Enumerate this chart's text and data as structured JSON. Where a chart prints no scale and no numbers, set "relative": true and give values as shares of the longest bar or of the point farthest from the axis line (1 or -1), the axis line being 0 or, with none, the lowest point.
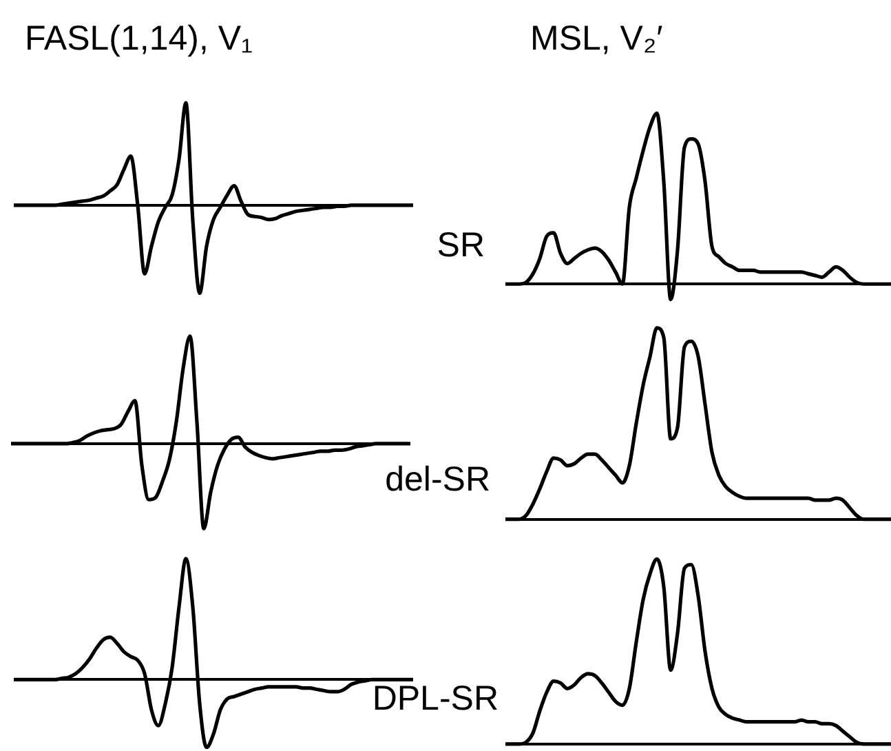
{
  "chart_data": [
    {
      "type": "line",
      "relative": true,
      "marker": "none",
      "title": "FASL(1,14), V₁",
      "categories": [
        null,
        null,
        null,
        null,
        null,
        null,
        null,
        null,
        null,
        null,
        null,
        null,
        null,
        null,
        null,
        null,
        null,
        null,
        null,
        null,
        null,
        null,
        null,
        null,
        null,
        null,
        null,
        null,
        null,
        null,
        null,
        null,
        null,
        null,
        null,
        null,
        null,
        null,
        null,
        null,
        null,
        null,
        null,
        null,
        null,
        null,
        null,
        null,
        null,
        null,
        null,
        null,
        null,
        null,
        null,
        null,
        null,
        null,
        null
      ],
      "series": [
        {
          "color": "#000000",
          "values": [
            0,
            0,
            0,
            0,
            0,
            0,
            0,
            0.01,
            0.02,
            0.03,
            0.04,
            0.05,
            0.07,
            0.09,
            0.14,
            0.2,
            0.35,
            0.48,
            0,
            -0.67,
            -0.4,
            -0.16,
            -0.02,
            0.1,
            0.45,
            1,
            -0.15,
            -0.86,
            -0.4,
            -0.14,
            -0.02,
            0.1,
            0.19,
            0.04,
            -0.09,
            -0.11,
            -0.12,
            -0.14,
            -0.13,
            -0.1,
            -0.08,
            -0.06,
            -0.05,
            -0.04,
            -0.03,
            -0.02,
            -0.02,
            -0.01,
            -0.01,
            0,
            0,
            0,
            0,
            0,
            0,
            0,
            0,
            0,
            0
          ]
        }
      ]
    },
    {
      "type": "line",
      "relative": true,
      "marker": "none",
      "title": "MSL, V₂′",
      "annotations": [
        "SR"
      ],
      "categories": [
        null,
        null,
        null,
        null,
        null,
        null,
        null,
        null,
        null,
        null,
        null,
        null,
        null,
        null,
        null,
        null,
        null,
        null,
        null,
        null,
        null,
        null,
        null,
        null,
        null,
        null,
        null,
        null,
        null,
        null,
        null,
        null,
        null,
        null,
        null,
        null,
        null,
        null,
        null,
        null,
        null,
        null,
        null,
        null,
        null,
        null,
        null,
        null,
        null,
        null,
        null,
        null,
        null,
        null,
        null,
        null,
        null
      ],
      "series": [
        {
          "color": "#000000",
          "values": [
            0,
            0,
            0,
            0.01,
            0.06,
            0.15,
            0.28,
            0.3,
            0.18,
            0.12,
            0.15,
            0.18,
            0.2,
            0.21,
            0.19,
            0.14,
            0.07,
            0,
            0.45,
            0.62,
            0.78,
            0.92,
            1,
            0.6,
            -0.09,
            0.2,
            0.8,
            0.85,
            0.82,
            0.6,
            0.22,
            0.16,
            0.12,
            0.1,
            0.08,
            0.08,
            0.08,
            0.07,
            0.07,
            0.07,
            0.07,
            0.07,
            0.07,
            0.07,
            0.06,
            0.05,
            0.04,
            0.07,
            0.1,
            0.08,
            0.04,
            0.01,
            0,
            0,
            0,
            0,
            0
          ]
        }
      ]
    },
    {
      "type": "line",
      "relative": true,
      "marker": "none",
      "categories": [
        null,
        null,
        null,
        null,
        null,
        null,
        null,
        null,
        null,
        null,
        null,
        null,
        null,
        null,
        null,
        null,
        null,
        null,
        null,
        null,
        null,
        null,
        null,
        null,
        null,
        null,
        null,
        null,
        null,
        null,
        null,
        null,
        null,
        null,
        null,
        null,
        null,
        null,
        null,
        null,
        null,
        null,
        null,
        null,
        null,
        null,
        null,
        null,
        null,
        null,
        null,
        null,
        null,
        null,
        null,
        null,
        null,
        null,
        null
      ],
      "series": [
        {
          "color": "#000000",
          "values": [
            0,
            0,
            0,
            0,
            0,
            0,
            0,
            0,
            0,
            0.01,
            0.03,
            0.07,
            0.1,
            0.12,
            0.13,
            0.14,
            0.18,
            0.3,
            0.4,
            -0.2,
            -0.52,
            -0.5,
            -0.35,
            -0.15,
            0.2,
            0.7,
            1,
            0.2,
            -0.79,
            -0.45,
            -0.2,
            -0.05,
            0.04,
            0.06,
            -0.03,
            -0.08,
            -0.11,
            -0.13,
            -0.14,
            -0.13,
            -0.12,
            -0.11,
            -0.1,
            -0.09,
            -0.08,
            -0.07,
            -0.07,
            -0.06,
            -0.06,
            -0.05,
            -0.03,
            -0.02,
            -0.01,
            0,
            0,
            0,
            0,
            0,
            0
          ]
        }
      ]
    },
    {
      "type": "line",
      "relative": true,
      "marker": "none",
      "annotations": [
        "del-SR"
      ],
      "categories": [
        null,
        null,
        null,
        null,
        null,
        null,
        null,
        null,
        null,
        null,
        null,
        null,
        null,
        null,
        null,
        null,
        null,
        null,
        null,
        null,
        null,
        null,
        null,
        null,
        null,
        null,
        null,
        null,
        null,
        null,
        null,
        null,
        null,
        null,
        null,
        null,
        null,
        null,
        null,
        null,
        null,
        null,
        null,
        null,
        null,
        null,
        null,
        null,
        null,
        null,
        null,
        null,
        null,
        null,
        null,
        null,
        null
      ],
      "series": [
        {
          "color": "#000000",
          "values": [
            0,
            0,
            0,
            0.02,
            0.08,
            0.16,
            0.25,
            0.32,
            0.31,
            0.28,
            0.29,
            0.32,
            0.34,
            0.34,
            0.31,
            0.27,
            0.23,
            0.19,
            0.28,
            0.5,
            0.7,
            0.85,
            1,
            0.95,
            0.42,
            0.48,
            0.9,
            0.93,
            0.85,
            0.6,
            0.35,
            0.23,
            0.17,
            0.14,
            0.12,
            0.11,
            0.11,
            0.11,
            0.11,
            0.11,
            0.11,
            0.11,
            0.11,
            0.11,
            0.11,
            0.1,
            0.1,
            0.1,
            0.11,
            0.1,
            0.06,
            0.02,
            0,
            0,
            0,
            0,
            0
          ]
        }
      ]
    },
    {
      "type": "line",
      "relative": true,
      "marker": "none",
      "categories": [
        null,
        null,
        null,
        null,
        null,
        null,
        null,
        null,
        null,
        null,
        null,
        null,
        null,
        null,
        null,
        null,
        null,
        null,
        null,
        null,
        null,
        null,
        null,
        null,
        null,
        null,
        null,
        null,
        null,
        null,
        null,
        null,
        null,
        null,
        null,
        null,
        null,
        null,
        null,
        null,
        null,
        null,
        null,
        null,
        null,
        null,
        null,
        null,
        null,
        null,
        null,
        null,
        null,
        null,
        null,
        null,
        null,
        null,
        null
      ],
      "series": [
        {
          "color": "#000000",
          "values": [
            0,
            0,
            0,
            0,
            0,
            0,
            0,
            0.01,
            0.02,
            0.05,
            0.1,
            0.17,
            0.26,
            0.33,
            0.35,
            0.3,
            0.23,
            0.19,
            0.16,
            0.05,
            -0.25,
            -0.38,
            -0.2,
            0.1,
            0.6,
            1,
            0.6,
            -0.2,
            -0.56,
            -0.45,
            -0.25,
            -0.16,
            -0.14,
            -0.12,
            -0.1,
            -0.08,
            -0.07,
            -0.06,
            -0.06,
            -0.06,
            -0.06,
            -0.06,
            -0.07,
            -0.07,
            -0.08,
            -0.09,
            -0.1,
            -0.1,
            -0.08,
            -0.04,
            -0.02,
            -0.01,
            0,
            0,
            0,
            0,
            0,
            0,
            0
          ]
        }
      ]
    },
    {
      "type": "line",
      "relative": true,
      "marker": "none",
      "annotations": [
        "DPL-SR"
      ],
      "categories": [
        null,
        null,
        null,
        null,
        null,
        null,
        null,
        null,
        null,
        null,
        null,
        null,
        null,
        null,
        null,
        null,
        null,
        null,
        null,
        null,
        null,
        null,
        null,
        null,
        null,
        null,
        null,
        null,
        null,
        null,
        null,
        null,
        null,
        null,
        null,
        null,
        null,
        null,
        null,
        null,
        null,
        null,
        null,
        null,
        null,
        null,
        null,
        null,
        null,
        null,
        null,
        null,
        null,
        null,
        null,
        null,
        null
      ],
      "series": [
        {
          "color": "#000000",
          "values": [
            0,
            0,
            0,
            0.01,
            0.06,
            0.18,
            0.28,
            0.34,
            0.33,
            0.3,
            0.32,
            0.36,
            0.38,
            0.37,
            0.33,
            0.28,
            0.23,
            0.21,
            0.3,
            0.55,
            0.78,
            0.92,
            1,
            0.85,
            0.4,
            0.6,
            0.95,
            0.97,
            0.8,
            0.5,
            0.3,
            0.2,
            0.16,
            0.14,
            0.13,
            0.12,
            0.12,
            0.12,
            0.12,
            0.12,
            0.12,
            0.12,
            0.12,
            0.13,
            0.12,
            0.12,
            0.11,
            0.11,
            0.1,
            0.07,
            0.04,
            0.01,
            0,
            0,
            0,
            0,
            0
          ]
        }
      ]
    }
  ]
}
